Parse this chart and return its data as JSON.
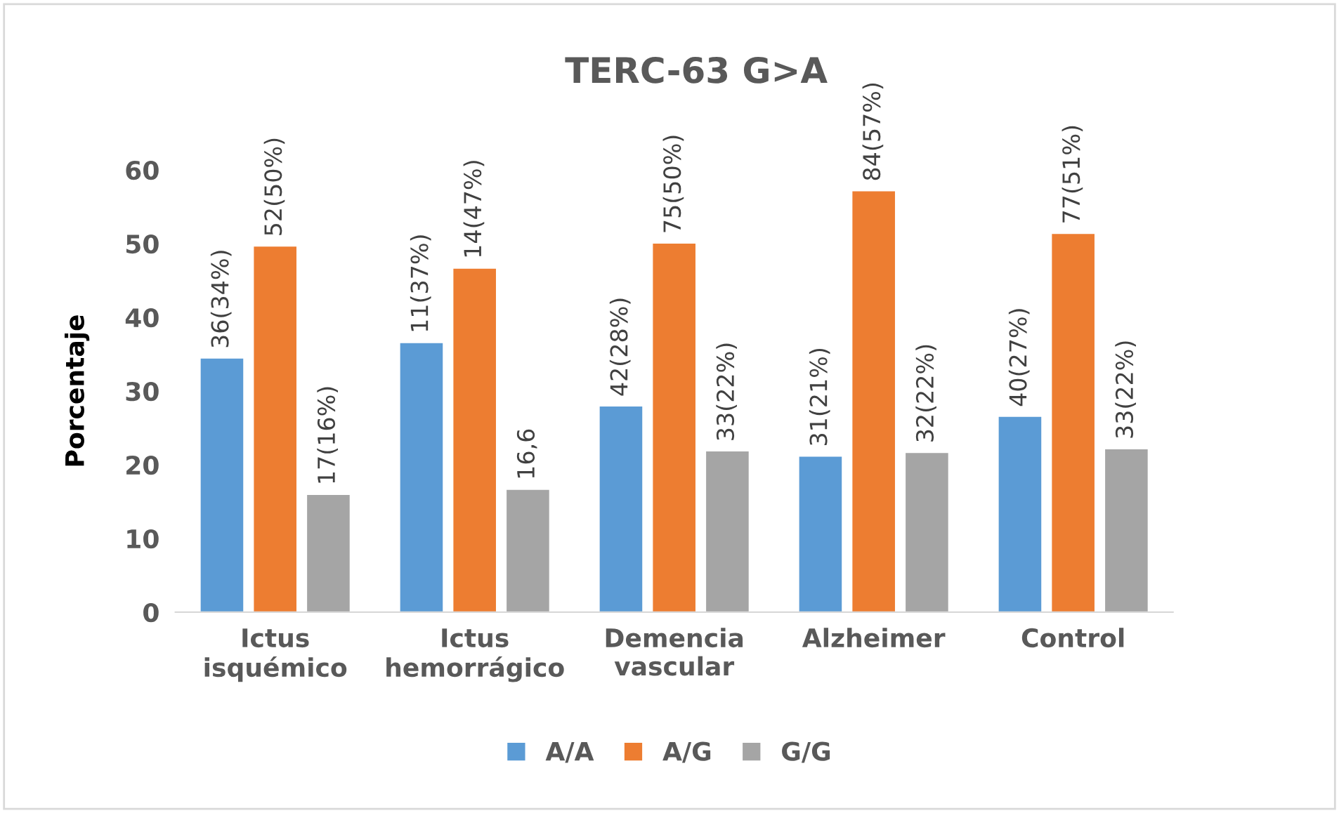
{
  "chart_data": {
    "type": "bar",
    "title": "TERC-63 G>A",
    "ylabel": "Porcentaje",
    "categories": [
      "Ictus\nisquémico",
      "Ictus\nhemorrágico",
      "Demencia\nvascular",
      "Alzheimer",
      "Control"
    ],
    "series": [
      {
        "name": "A/A",
        "color": "#5b9bd5",
        "values": [
          34.4,
          36.5,
          27.9,
          21.1,
          26.5
        ],
        "value_labels": [
          "36(34%)",
          "11(37%)",
          "42(28%)",
          "31(21%)",
          "40(27%)"
        ]
      },
      {
        "name": "A/G",
        "color": "#ed7d31",
        "values": [
          49.6,
          46.6,
          50.0,
          57.1,
          51.3
        ],
        "value_labels": [
          "52(50%)",
          "14(47%)",
          "75(50%)",
          "84(57%)",
          "77(51%)"
        ]
      },
      {
        "name": "G/G",
        "color": "#a5a5a5",
        "values": [
          15.9,
          16.6,
          21.8,
          21.6,
          22.1
        ],
        "value_labels": [
          "17(16%)",
          "16,6",
          "33(22%)",
          "32(22%)",
          "33(22%)"
        ]
      }
    ],
    "ylim": [
      0,
      60
    ],
    "yticks": [
      0,
      10,
      20,
      30,
      40,
      50,
      60
    ],
    "grid": false,
    "legend": "bottom"
  }
}
